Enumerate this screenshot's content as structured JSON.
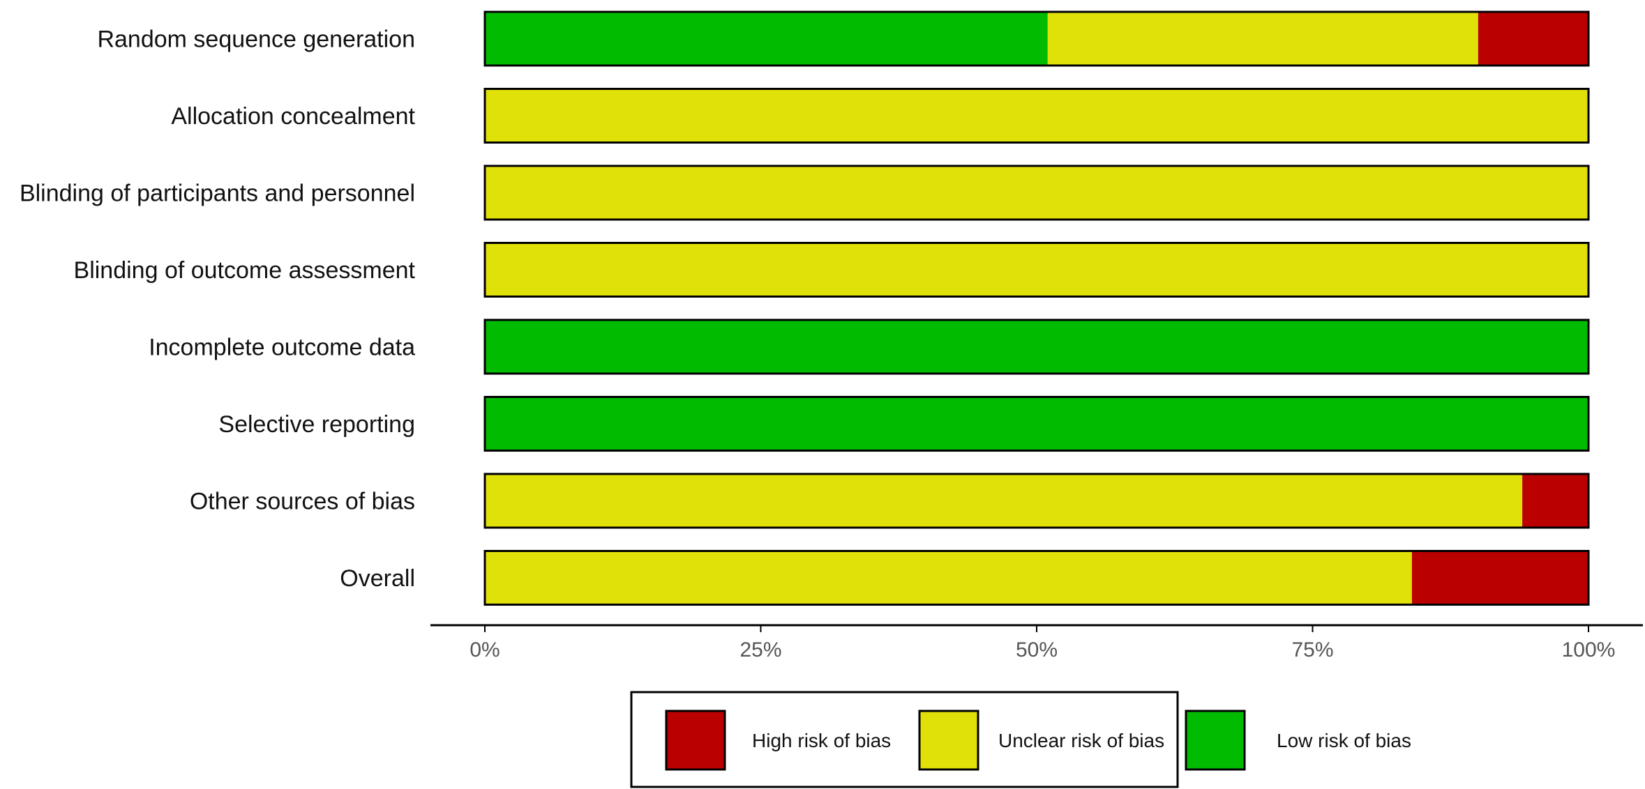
{
  "chart_data": {
    "type": "bar",
    "orientation": "horizontal",
    "stacked": true,
    "categories": [
      "Random sequence generation",
      "Allocation concealment",
      "Blinding of participants and personnel",
      "Blinding of outcome assessment",
      "Incomplete outcome data",
      "Selective reporting",
      "Other sources of bias",
      "Overall"
    ],
    "series": [
      {
        "name": "Low risk of bias",
        "color": "#00bb00",
        "values": [
          51,
          0,
          0,
          0,
          100,
          100,
          0,
          0
        ]
      },
      {
        "name": "Unclear risk of bias",
        "color": "#e1e10a",
        "values": [
          39,
          100,
          100,
          100,
          0,
          0,
          94,
          84
        ]
      },
      {
        "name": "High risk of bias",
        "color": "#bb0000",
        "values": [
          10,
          0,
          0,
          0,
          0,
          0,
          6,
          16
        ]
      }
    ],
    "xlim": [
      0,
      100
    ],
    "ticks": [
      {
        "value": 0,
        "label": "0%"
      },
      {
        "value": 25,
        "label": "25%"
      },
      {
        "value": 50,
        "label": "50%"
      },
      {
        "value": 75,
        "label": "75%"
      },
      {
        "value": 100,
        "label": "100%"
      }
    ],
    "title": "",
    "xlabel": "",
    "ylabel": "",
    "grid": false,
    "legend": {
      "position": "bottom",
      "order": [
        "High risk of bias",
        "Unclear risk of bias",
        "Low risk of bias"
      ]
    }
  }
}
